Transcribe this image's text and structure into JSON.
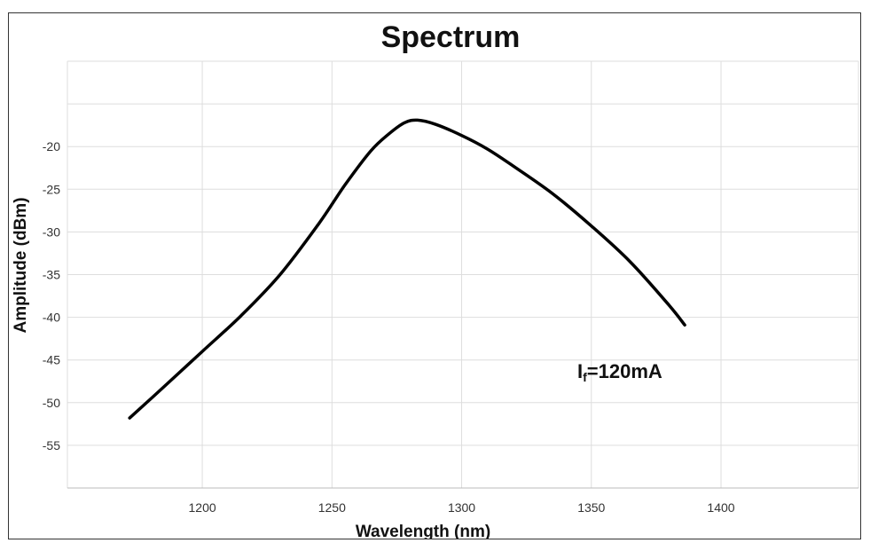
{
  "chart_data": {
    "type": "line",
    "title": "Spectrum",
    "xlabel": "Wavelength  (nm)",
    "ylabel": "Amplitude  (dBm)",
    "xlim": [
      1148,
      1453
    ],
    "ylim": [
      -60,
      -10
    ],
    "xticks": [
      1200,
      1250,
      1300,
      1350,
      1400
    ],
    "yticks": [
      -20,
      -25,
      -30,
      -35,
      -40,
      -45,
      -50,
      -55
    ],
    "grid": true,
    "annotation": {
      "main": "I",
      "sub": "f",
      "rest": "=120mA"
    },
    "series": [
      {
        "color": "#000000",
        "x": [
          1172,
          1185,
          1200,
          1215,
          1230,
          1245,
          1255,
          1265,
          1272,
          1278,
          1283,
          1290,
          1300,
          1310,
          1320,
          1335,
          1350,
          1365,
          1380,
          1386
        ],
        "y": [
          -51.8,
          -48.2,
          -44.0,
          -39.8,
          -35.0,
          -29.0,
          -24.5,
          -20.5,
          -18.5,
          -17.2,
          -16.9,
          -17.4,
          -18.7,
          -20.3,
          -22.3,
          -25.5,
          -29.3,
          -33.5,
          -38.6,
          -40.9
        ]
      }
    ],
    "line_color": "#000000",
    "grid_color": "#dddddd"
  }
}
